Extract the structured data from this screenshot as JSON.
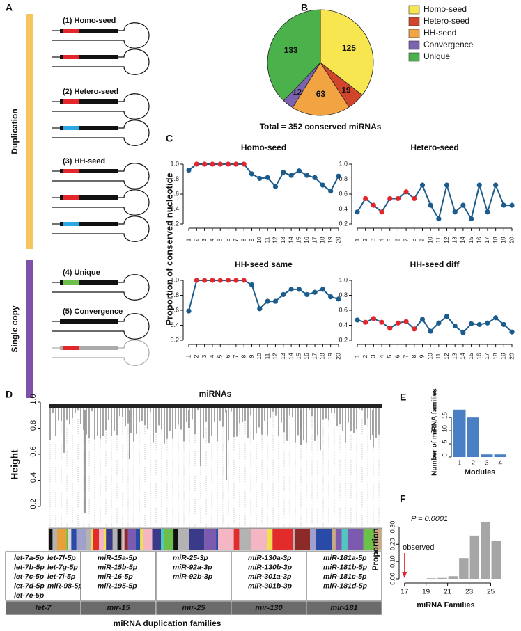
{
  "panel_labels": [
    "A",
    "B",
    "C",
    "D",
    "E",
    "F"
  ],
  "panel_a": {
    "groups": [
      "Duplication",
      "Single copy"
    ],
    "items": [
      "(1) Homo-seed",
      "(2) Hetero-seed",
      "(3) HH-seed",
      "(4) Unique",
      "(5) Convergence"
    ]
  },
  "panel_c": {
    "ylabel": "Proportion of conserved nucleotide"
  },
  "chart_data": [
    {
      "type": "pie",
      "categories": [
        "Homo-seed",
        "Hetero-seed",
        "HH-seed",
        "Convergence",
        "Unique"
      ],
      "values": [
        125,
        19,
        63,
        12,
        133
      ],
      "colors": [
        "#f7e64f",
        "#d2452b",
        "#f2a443",
        "#7b63b0",
        "#4bb14b"
      ],
      "caption": "Total = 352 conserved miRNAs",
      "legend": "right"
    },
    {
      "type": "line",
      "title": "Homo-seed",
      "categories": [
        "1",
        "2",
        "3",
        "4",
        "5",
        "6",
        "7",
        "8",
        "9",
        "10",
        "11",
        "12",
        "13",
        "14",
        "15",
        "16",
        "17",
        "18",
        "19",
        "20"
      ],
      "values": [
        0.92,
        1,
        1,
        1,
        1,
        1,
        1,
        1,
        0.87,
        0.81,
        0.82,
        0.7,
        0.89,
        0.85,
        0.91,
        0.85,
        0.82,
        0.72,
        0.64,
        0.84
      ],
      "color": "#1c5c8c",
      "marker_colors": [
        "#1c5c8c",
        "#e3262b",
        "#e3262b",
        "#e3262b",
        "#e3262b",
        "#e3262b",
        "#e3262b",
        "#e3262b",
        "#1c5c8c",
        "#1c5c8c",
        "#1c5c8c",
        "#1c5c8c",
        "#1c5c8c",
        "#1c5c8c",
        "#1c5c8c",
        "#1c5c8c",
        "#1c5c8c",
        "#1c5c8c",
        "#1c5c8c",
        "#1c5c8c"
      ],
      "ylim": [
        0.2,
        1.0
      ],
      "yticks": [
        0.2,
        0.4,
        0.6,
        0.8,
        {
          "value": 1.0,
          "label": "1.0"
        }
      ]
    },
    {
      "type": "line",
      "title": "Hetero-seed",
      "categories": [
        "1",
        "2",
        "3",
        "4",
        "5",
        "6",
        "7",
        "8",
        "9",
        "10",
        "11",
        "12",
        "13",
        "14",
        "15",
        "16",
        "17",
        "18",
        "19",
        "20"
      ],
      "values": [
        0.36,
        0.54,
        0.45,
        0.36,
        0.54,
        0.54,
        0.63,
        0.54,
        0.72,
        0.45,
        0.27,
        0.72,
        0.36,
        0.45,
        0.27,
        0.72,
        0.36,
        0.72,
        0.45,
        0.45
      ],
      "color": "#1c5c8c",
      "marker_colors": [
        "#1c5c8c",
        "#e3262b",
        "#e3262b",
        "#e3262b",
        "#e3262b",
        "#e3262b",
        "#e3262b",
        "#e3262b",
        "#1c5c8c",
        "#1c5c8c",
        "#1c5c8c",
        "#1c5c8c",
        "#1c5c8c",
        "#1c5c8c",
        "#1c5c8c",
        "#1c5c8c",
        "#1c5c8c",
        "#1c5c8c",
        "#1c5c8c",
        "#1c5c8c"
      ],
      "ylim": [
        0.2,
        1.0
      ],
      "yticks": [
        0.2,
        0.4,
        0.6,
        0.8,
        {
          "value": 1.0,
          "label": "1.0"
        }
      ]
    },
    {
      "type": "line",
      "title": "HH-seed same",
      "categories": [
        "1",
        "2",
        "3",
        "4",
        "5",
        "6",
        "7",
        "8",
        "9",
        "10",
        "11",
        "12",
        "13",
        "14",
        "15",
        "16",
        "17",
        "18",
        "19",
        "20"
      ],
      "values": [
        0.59,
        1,
        1,
        1,
        1,
        1,
        1,
        1,
        0.94,
        0.62,
        0.72,
        0.72,
        0.81,
        0.88,
        0.88,
        0.81,
        0.84,
        0.88,
        0.78,
        0.75
      ],
      "color": "#1c5c8c",
      "marker_colors": [
        "#1c5c8c",
        "#e3262b",
        "#e3262b",
        "#e3262b",
        "#e3262b",
        "#e3262b",
        "#e3262b",
        "#e3262b",
        "#1c5c8c",
        "#1c5c8c",
        "#1c5c8c",
        "#1c5c8c",
        "#1c5c8c",
        "#1c5c8c",
        "#1c5c8c",
        "#1c5c8c",
        "#1c5c8c",
        "#1c5c8c",
        "#1c5c8c",
        "#1c5c8c"
      ],
      "ylim": [
        0.2,
        1.0
      ],
      "yticks": [
        0.2,
        0.4,
        0.6,
        0.8,
        {
          "value": 1.0,
          "label": "1.0"
        }
      ]
    },
    {
      "type": "line",
      "title": "HH-seed diff",
      "categories": [
        "1",
        "2",
        "3",
        "4",
        "5",
        "6",
        "7",
        "8",
        "9",
        "10",
        "11",
        "12",
        "13",
        "14",
        "15",
        "16",
        "17",
        "18",
        "19",
        "20"
      ],
      "values": [
        0.47,
        0.44,
        0.49,
        0.44,
        0.36,
        0.43,
        0.45,
        0.35,
        0.48,
        0.32,
        0.43,
        0.52,
        0.39,
        0.3,
        0.42,
        0.41,
        0.43,
        0.5,
        0.41,
        0.31
      ],
      "color": "#1c5c8c",
      "marker_colors": [
        "#1c5c8c",
        "#e3262b",
        "#e3262b",
        "#e3262b",
        "#e3262b",
        "#e3262b",
        "#e3262b",
        "#e3262b",
        "#1c5c8c",
        "#1c5c8c",
        "#1c5c8c",
        "#1c5c8c",
        "#1c5c8c",
        "#1c5c8c",
        "#1c5c8c",
        "#1c5c8c",
        "#1c5c8c",
        "#1c5c8c",
        "#1c5c8c",
        "#1c5c8c"
      ],
      "ylim": [
        0.2,
        1.0
      ],
      "yticks": [
        0.2,
        0.4,
        0.6,
        0.8,
        {
          "value": 1.0,
          "label": "1.0"
        }
      ]
    },
    {
      "type": "dendrogram",
      "title": "miRNAs",
      "ylabel": "Height",
      "ylim": [
        0.04,
        1.0
      ],
      "yticks": [
        0.2,
        0.4,
        0.6,
        0.8,
        {
          "value": 1.0,
          "label": "1.0"
        }
      ]
    },
    {
      "type": "bar",
      "categories": [
        "1",
        "2",
        "3",
        "4"
      ],
      "values": [
        18,
        15,
        1,
        1
      ],
      "color": "#4a7fc4",
      "xlabel": "Modules",
      "ylabel": "Number of miRNA families",
      "ylim": [
        0,
        19
      ],
      "yticks": [
        0,
        5,
        10,
        15
      ]
    },
    {
      "type": "histogram",
      "bins": [
        19,
        20,
        21,
        22,
        23,
        24,
        25,
        26
      ],
      "values": [
        0.003,
        0.005,
        0.015,
        0.12,
        0.25,
        0.33,
        0.22
      ],
      "color": "#a6a6a6",
      "xlabel": "miRNA Families",
      "ylabel": "Proportion",
      "xlim": [
        16.5,
        26
      ],
      "xticks": [
        17,
        19,
        21,
        23,
        25
      ],
      "ylim": [
        0,
        0.35
      ],
      "yticks": [
        {
          "value": 0,
          "label": "0.00"
        },
        {
          "value": 0.1,
          "label": "0.10"
        },
        {
          "value": 0.2,
          "label": "0.20"
        },
        {
          "value": 0.3,
          "label": "0.30"
        }
      ],
      "annotation": "P = 0.0001",
      "observed": 17,
      "observed_label": "observed",
      "observed_color": "#e3262b"
    }
  ],
  "panel_d_table": {
    "xlabel": "miRNA duplication families",
    "families": [
      {
        "name": "let-7",
        "members": [
          {
            "name": "let-7a-5p",
            "color": "#e4291f"
          },
          {
            "name": "let-7b-5p",
            "color": "#e4291f"
          },
          {
            "name": "let-7c-5p",
            "color": "#72b03a"
          },
          {
            "name": "let-7d-5p",
            "color": "#e4291f"
          },
          {
            "name": "let-7e-5p",
            "color": "#e4291f"
          },
          {
            "name": "let-7f-5p",
            "color": "#e4291f"
          },
          {
            "name": "let-7g-5p",
            "color": "#e4291f"
          },
          {
            "name": "let-7i-5p",
            "color": "#72b03a"
          },
          {
            "name": "miR-98-5p",
            "color": "#72b03a"
          }
        ]
      },
      {
        "name": "mir-15",
        "members": [
          {
            "name": "miR-15a-5p",
            "color": "#5db0b0"
          },
          {
            "name": "miR-15b-5p",
            "color": "#6a9a2a"
          },
          {
            "name": "miR-16-5p",
            "color": "#5db0b0"
          },
          {
            "name": "miR-195-5p",
            "color": "#9ab94a"
          }
        ]
      },
      {
        "name": "mir-25",
        "members": [
          {
            "name": "miR-25-3p",
            "color": "#d9c832"
          },
          {
            "name": "miR-92a-3p",
            "color": "#b4b82a"
          },
          {
            "name": "miR-92b-3p",
            "color": "#8aa030"
          }
        ]
      },
      {
        "name": "mir-130",
        "members": [
          {
            "name": "miR-130a-3p",
            "color": "#8b1d1d"
          },
          {
            "name": "miR-130b-3p",
            "color": "#7a9a2a"
          },
          {
            "name": "miR-301a-3p",
            "color": "#e0301e"
          },
          {
            "name": "miR-301b-3p",
            "color": "#111111"
          }
        ]
      },
      {
        "name": "mir-181",
        "members": [
          {
            "name": "miR-181a-5p",
            "color": "#2a3a8c"
          },
          {
            "name": "miR-181b-5p",
            "color": "#2a3a8c"
          },
          {
            "name": "miR-181c-5p",
            "color": "#5db0b0"
          },
          {
            "name": "miR-181d-5p",
            "color": "#5db0b0"
          }
        ]
      }
    ]
  }
}
